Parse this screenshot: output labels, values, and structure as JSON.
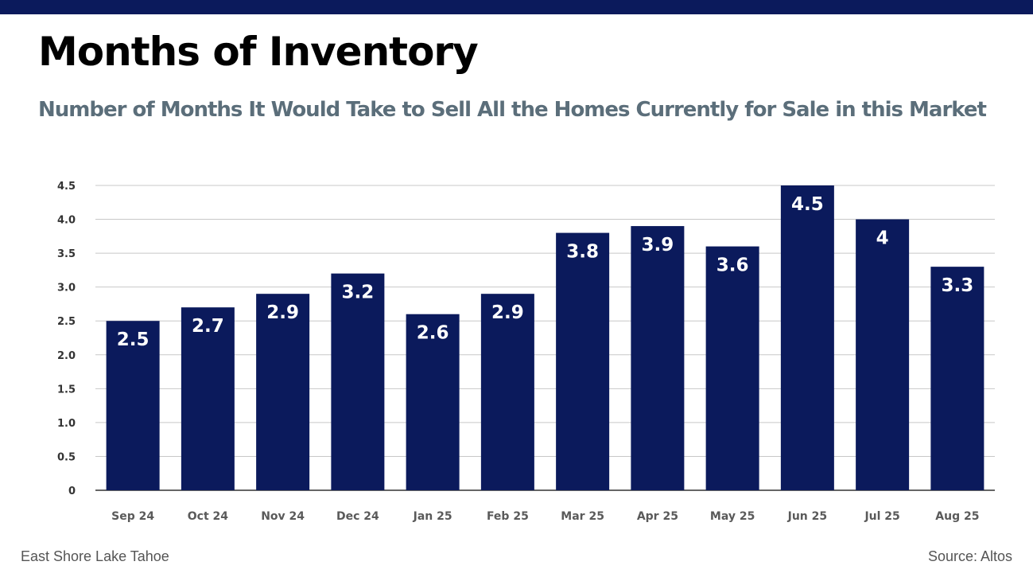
{
  "header": {
    "title": "Months of Inventory",
    "subtitle": "Number of Months It Would Take to Sell All the Homes Currently for Sale in this Market"
  },
  "footer": {
    "location": "East Shore Lake Tahoe",
    "source": "Source: Altos"
  },
  "colors": {
    "band": "#0b1a5c",
    "bar": "#0b1a5c",
    "bar_label": "#ffffff",
    "grid": "#c8c8c8",
    "axis": "#333333"
  },
  "chart_data": {
    "type": "bar",
    "title": "",
    "xlabel": "",
    "ylabel": "",
    "categories": [
      "Sep 24",
      "Oct 24",
      "Nov 24",
      "Dec 24",
      "Jan 25",
      "Feb 25",
      "Mar 25",
      "Apr 25",
      "May 25",
      "Jun 25",
      "Jul 25",
      "Aug 25"
    ],
    "values": [
      2.5,
      2.7,
      2.9,
      3.2,
      2.6,
      2.9,
      3.8,
      3.9,
      3.6,
      4.5,
      4.0,
      3.3
    ],
    "value_labels": [
      "2.5",
      "2.7",
      "2.9",
      "3.2",
      "2.6",
      "2.9",
      "3.8",
      "3.9",
      "3.6",
      "4.5",
      "4",
      "3.3"
    ],
    "y_ticks": [
      0,
      0.5,
      1.0,
      1.5,
      2.0,
      2.5,
      3.0,
      3.5,
      4.0,
      4.5
    ],
    "y_tick_labels": [
      "0",
      "0.5",
      "1.0",
      "1.5",
      "2.0",
      "2.5",
      "3.0",
      "3.5",
      "4.0",
      "4.5"
    ],
    "ylim": [
      0,
      4.5
    ],
    "grid": true,
    "legend": "none"
  }
}
